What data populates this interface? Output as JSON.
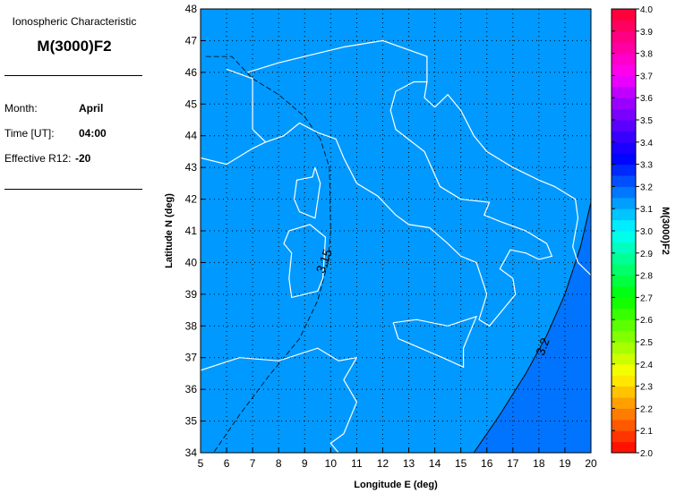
{
  "panel": {
    "subtitle": "Ionospheric Characteristic",
    "title": "M(3000)F2",
    "month_label": "Month:",
    "month": "April",
    "time_label": "Time [UT]:",
    "time": "04:00",
    "r12_label": "Effective R12:",
    "r12": "-20"
  },
  "map": {
    "xlabel": "Longitude E (deg)",
    "ylabel": "Latitude N (deg)",
    "lon_range": [
      5,
      20
    ],
    "lat_range": [
      34,
      48
    ],
    "xticks": [
      "5",
      "6",
      "7",
      "8",
      "9",
      "10",
      "11",
      "12",
      "13",
      "14",
      "15",
      "16",
      "17",
      "18",
      "19",
      "20"
    ],
    "yticks": [
      "34",
      "35",
      "36",
      "37",
      "38",
      "39",
      "40",
      "41",
      "42",
      "43",
      "44",
      "45",
      "46",
      "47",
      "48"
    ],
    "grid": true,
    "contours": [
      {
        "label": "3.15",
        "style": "dashed"
      },
      {
        "label": "3.2",
        "style": "solid"
      }
    ],
    "colors": {
      "region_3_1": "#0099ff",
      "region_3_2": "#0073ff",
      "coastline": "#ffffff"
    }
  },
  "colorbar": {
    "label": "M(3000)F2",
    "range": [
      2.0,
      4.0
    ],
    "ticks": [
      "2.0",
      "2.1",
      "2.2",
      "2.3",
      "2.4",
      "2.5",
      "2.6",
      "2.7",
      "2.8",
      "2.9",
      "3.0",
      "3.1",
      "3.2",
      "3.3",
      "3.4",
      "3.5",
      "3.6",
      "3.7",
      "3.8",
      "3.9",
      "4.0"
    ]
  }
}
